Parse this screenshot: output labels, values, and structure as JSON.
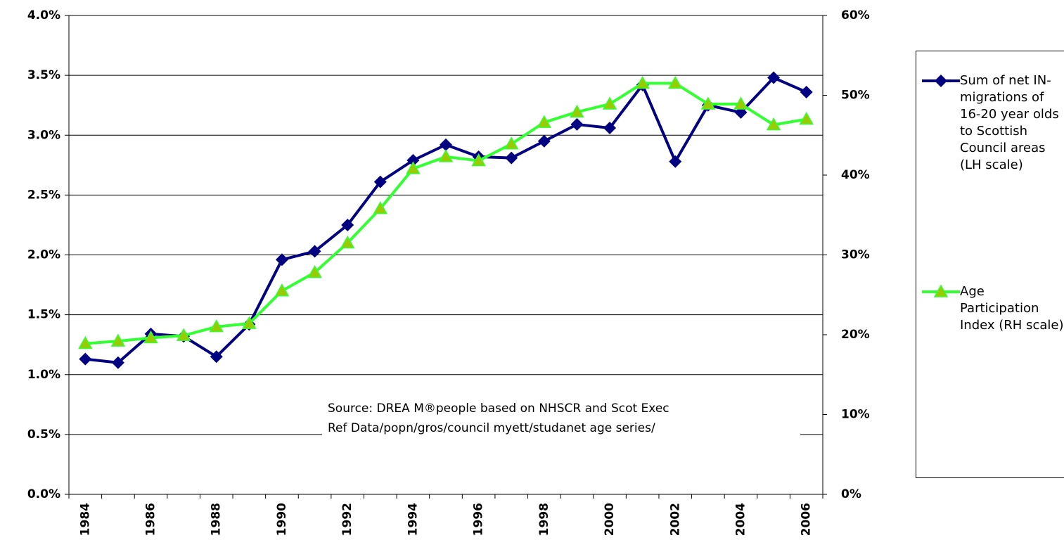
{
  "chart_data": {
    "type": "line",
    "categories": [
      "1984",
      null,
      "1986",
      null,
      "1988",
      null,
      "1990",
      null,
      "1992",
      null,
      "1994",
      null,
      "1996",
      null,
      "1998",
      null,
      "2000",
      null,
      "2002",
      null,
      "2004",
      null,
      "2006"
    ],
    "series": [
      {
        "name": "Sum of net IN-migrations of 16-20 year olds to Scottish Council areas (LH scale)",
        "color": "#000080",
        "marker": "diamond",
        "values": [
          1.13,
          1.1,
          1.34,
          1.32,
          1.15,
          1.42,
          1.96,
          2.03,
          2.25,
          2.61,
          2.79,
          2.92,
          2.82,
          2.81,
          2.95,
          3.09,
          3.06,
          3.42,
          2.78,
          3.25,
          3.19,
          3.48,
          3.36
        ]
      },
      {
        "name": "Age Participation Index (RH scale)",
        "color": "#33ff33",
        "marker": "triangle",
        "axis": "y2",
        "values": [
          18.9,
          19.2,
          19.6,
          19.9,
          21.0,
          21.4,
          25.5,
          27.8,
          31.5,
          35.8,
          40.8,
          42.3,
          41.8,
          43.9,
          46.6,
          47.9,
          48.9,
          51.5,
          51.5,
          48.9,
          48.9,
          46.3,
          47.0
        ]
      }
    ],
    "ylim": [
      0,
      4.0
    ],
    "yticks": [
      {
        "value": 0,
        "label": "0.0%"
      },
      {
        "value": 0.5,
        "label": "0.5%"
      },
      {
        "value": 1.0,
        "label": "1.0%"
      },
      {
        "value": 1.5,
        "label": "1.5%"
      },
      {
        "value": 2.0,
        "label": "2.0%"
      },
      {
        "value": 2.5,
        "label": "2.5%"
      },
      {
        "value": 3.0,
        "label": "3.0%"
      },
      {
        "value": 3.5,
        "label": "3.5%"
      },
      {
        "value": 4.0,
        "label": "4.0%"
      }
    ],
    "y2lim": [
      0,
      60
    ],
    "y2ticks": [
      {
        "value": 0,
        "label": "0%"
      },
      {
        "value": 10,
        "label": "10%"
      },
      {
        "value": 20,
        "label": "20%"
      },
      {
        "value": 30,
        "label": "30%"
      },
      {
        "value": 40,
        "label": "40%"
      },
      {
        "value": 50,
        "label": "50%"
      },
      {
        "value": 60,
        "label": "60%"
      }
    ],
    "grid": true,
    "legend": "right",
    "annotation": [
      "Source:  DREA M®people based on NHSCR and Scot Exec",
      "Ref Data/popn/gros/council myett/studanet age series/"
    ]
  }
}
